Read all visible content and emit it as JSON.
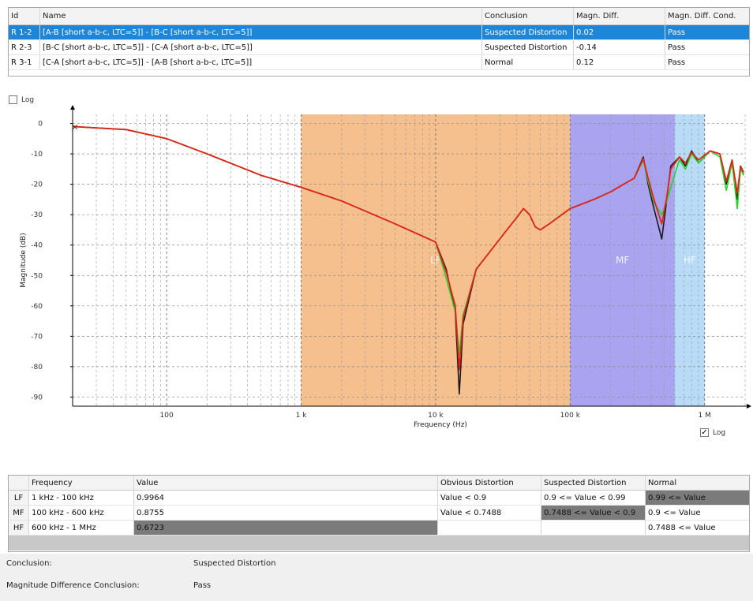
{
  "results_table": {
    "headers": [
      "Id",
      "Name",
      "Conclusion",
      "Magn. Diff.",
      "Magn. Diff. Cond."
    ],
    "rows": [
      {
        "id": "R 1-2",
        "name": "[A-B [short a-b-c, LTC=5]] - [B-C [short a-b-c, LTC=5]]",
        "conclusion": "Suspected Distortion",
        "diff": "0.02",
        "cond": "Pass",
        "selected": true
      },
      {
        "id": "R 2-3",
        "name": "[B-C [short a-b-c, LTC=5]] - [C-A [short a-b-c, LTC=5]]",
        "conclusion": "Suspected Distortion",
        "diff": "-0.14",
        "cond": "Pass",
        "selected": false
      },
      {
        "id": "R 3-1",
        "name": "[C-A [short a-b-c, LTC=5]] - [A-B [short a-b-c, LTC=5]]",
        "conclusion": "Normal",
        "diff": "0.12",
        "cond": "Pass",
        "selected": false
      }
    ]
  },
  "log_top": {
    "label": "Log",
    "checked": false
  },
  "log_bottom": {
    "label": "Log",
    "checked": true
  },
  "chart_data": {
    "type": "line",
    "xlabel": "Frequency (Hz)",
    "ylabel": "Magnitude (dB)",
    "x_scale": "log",
    "xlim": [
      20,
      2000000
    ],
    "ylim": [
      -93,
      3
    ],
    "x_ticks": [
      {
        "v": 100,
        "label": "100"
      },
      {
        "v": 1000,
        "label": "1 k"
      },
      {
        "v": 10000,
        "label": "10 k"
      },
      {
        "v": 100000,
        "label": "100 k"
      },
      {
        "v": 1000000,
        "label": "1 M"
      }
    ],
    "y_ticks": [
      0,
      -10,
      -20,
      -30,
      -40,
      -50,
      -60,
      -70,
      -80,
      -90
    ],
    "grid": true,
    "regions": [
      {
        "label": "LF",
        "from": 1000,
        "to": 100000,
        "color": "#f5c08e"
      },
      {
        "label": "MF",
        "from": 100000,
        "to": 600000,
        "color": "#a9a3f0"
      },
      {
        "label": "HF",
        "from": 600000,
        "to": 1000000,
        "color": "#b8dcf7"
      }
    ],
    "series": [
      {
        "color": "#1a1a1a",
        "points": [
          [
            20,
            -1
          ],
          [
            50,
            -2
          ],
          [
            100,
            -5
          ],
          [
            200,
            -10
          ],
          [
            500,
            -17
          ],
          [
            1000,
            -21
          ],
          [
            2000,
            -25.5
          ],
          [
            5000,
            -33
          ],
          [
            10000,
            -39
          ],
          [
            12000,
            -48
          ],
          [
            14000,
            -62
          ],
          [
            15000,
            -89
          ],
          [
            16000,
            -66
          ],
          [
            20000,
            -48
          ],
          [
            30000,
            -38
          ],
          [
            40000,
            -31
          ],
          [
            45000,
            -28
          ],
          [
            50000,
            -30
          ],
          [
            55000,
            -34
          ],
          [
            60000,
            -35
          ],
          [
            70000,
            -33
          ],
          [
            100000,
            -28
          ],
          [
            150000,
            -25
          ],
          [
            200000,
            -22.5
          ],
          [
            250000,
            -20
          ],
          [
            300000,
            -18
          ],
          [
            350000,
            -11
          ],
          [
            380000,
            -20
          ],
          [
            420000,
            -28
          ],
          [
            480000,
            -38
          ],
          [
            520000,
            -26
          ],
          [
            560000,
            -14
          ],
          [
            650000,
            -11
          ],
          [
            720000,
            -14
          ],
          [
            800000,
            -9
          ],
          [
            900000,
            -13
          ],
          [
            1100000,
            -9
          ],
          [
            1300000,
            -10
          ],
          [
            1450000,
            -20
          ],
          [
            1600000,
            -12
          ],
          [
            1750000,
            -25
          ],
          [
            1850000,
            -14
          ],
          [
            1950000,
            -17
          ]
        ]
      },
      {
        "color": "#2ad12a",
        "points": [
          [
            20,
            -1
          ],
          [
            50,
            -2
          ],
          [
            100,
            -5
          ],
          [
            200,
            -10
          ],
          [
            500,
            -17
          ],
          [
            1000,
            -21
          ],
          [
            2000,
            -25.5
          ],
          [
            5000,
            -33
          ],
          [
            10000,
            -39
          ],
          [
            12000,
            -51
          ],
          [
            14000,
            -62
          ],
          [
            15000,
            -76
          ],
          [
            16000,
            -63
          ],
          [
            20000,
            -48
          ],
          [
            30000,
            -38
          ],
          [
            40000,
            -31
          ],
          [
            45000,
            -28
          ],
          [
            50000,
            -30
          ],
          [
            55000,
            -34
          ],
          [
            60000,
            -35
          ],
          [
            70000,
            -33
          ],
          [
            100000,
            -28
          ],
          [
            150000,
            -25
          ],
          [
            200000,
            -22.5
          ],
          [
            250000,
            -20
          ],
          [
            300000,
            -18
          ],
          [
            350000,
            -12
          ],
          [
            380000,
            -19
          ],
          [
            420000,
            -26
          ],
          [
            480000,
            -30
          ],
          [
            520000,
            -26
          ],
          [
            560000,
            -21
          ],
          [
            650000,
            -12
          ],
          [
            720000,
            -15
          ],
          [
            800000,
            -10
          ],
          [
            900000,
            -13
          ],
          [
            1100000,
            -9
          ],
          [
            1300000,
            -11
          ],
          [
            1450000,
            -22
          ],
          [
            1600000,
            -13
          ],
          [
            1750000,
            -28
          ],
          [
            1850000,
            -15
          ],
          [
            1950000,
            -17
          ]
        ]
      },
      {
        "color": "#e2231a",
        "points": [
          [
            20,
            -1
          ],
          [
            50,
            -2
          ],
          [
            100,
            -5
          ],
          [
            200,
            -10
          ],
          [
            500,
            -17
          ],
          [
            1000,
            -21
          ],
          [
            2000,
            -25.5
          ],
          [
            5000,
            -33
          ],
          [
            10000,
            -39
          ],
          [
            12000,
            -49
          ],
          [
            14000,
            -60
          ],
          [
            15000,
            -81
          ],
          [
            16000,
            -64
          ],
          [
            20000,
            -48
          ],
          [
            30000,
            -38
          ],
          [
            40000,
            -31
          ],
          [
            45000,
            -28
          ],
          [
            50000,
            -30
          ],
          [
            55000,
            -34
          ],
          [
            60000,
            -35
          ],
          [
            70000,
            -33
          ],
          [
            100000,
            -28
          ],
          [
            150000,
            -25
          ],
          [
            200000,
            -22.5
          ],
          [
            250000,
            -20
          ],
          [
            300000,
            -18
          ],
          [
            350000,
            -11.5
          ],
          [
            380000,
            -18
          ],
          [
            420000,
            -25
          ],
          [
            480000,
            -33
          ],
          [
            520000,
            -25
          ],
          [
            560000,
            -15
          ],
          [
            650000,
            -11
          ],
          [
            720000,
            -13
          ],
          [
            800000,
            -9.5
          ],
          [
            900000,
            -12
          ],
          [
            1100000,
            -9
          ],
          [
            1300000,
            -10
          ],
          [
            1450000,
            -19
          ],
          [
            1600000,
            -12
          ],
          [
            1750000,
            -23
          ],
          [
            1850000,
            -14
          ],
          [
            1950000,
            -16
          ]
        ]
      }
    ]
  },
  "bands_table": {
    "headers": [
      "Frequency",
      "Value",
      "Obvious Distortion",
      "Suspected Distortion",
      "Normal"
    ],
    "rows": [
      {
        "id": "LF",
        "freq": "1 kHz - 100 kHz",
        "value": "0.9964",
        "obvious": "Value < 0.9",
        "suspected": "0.9 <= Value < 0.99",
        "normal": "0.99 <= Value",
        "hl": "normal"
      },
      {
        "id": "MF",
        "freq": "100 kHz - 600 kHz",
        "value": "0.8755",
        "obvious": "Value < 0.7488",
        "suspected": "0.7488 <= Value < 0.9",
        "normal": "0.9 <= Value",
        "hl": "suspected"
      },
      {
        "id": "HF",
        "freq": "600 kHz - 1 MHz",
        "value": "0.6723",
        "obvious": "",
        "suspected": "",
        "normal": "0.7488 <= Value",
        "hl": "value"
      }
    ]
  },
  "conclusions": {
    "conclusion_label": "Conclusion:",
    "conclusion_value": "Suspected Distortion",
    "magn_label": "Magnitude Difference Conclusion:",
    "magn_value": "Pass"
  }
}
